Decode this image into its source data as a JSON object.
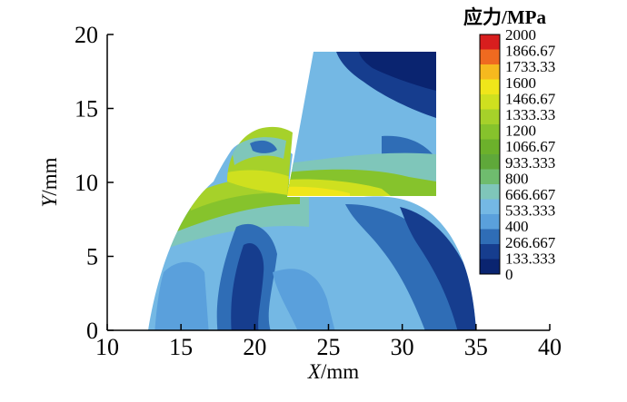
{
  "chart_data": {
    "type": "heatmap",
    "title": "",
    "xlabel_var": "X",
    "xlabel_unit": "/mm",
    "ylabel_var": "Y",
    "ylabel_unit": "/mm",
    "xlim": [
      10,
      40
    ],
    "ylim": [
      0,
      20
    ],
    "x_ticks": [
      "10",
      "15",
      "20",
      "25",
      "30",
      "35",
      "40"
    ],
    "y_ticks": [
      "0",
      "5",
      "10",
      "15",
      "20"
    ],
    "colorbar": {
      "title": "应力/MPa",
      "levels": [
        "2000",
        "1866.67",
        "1733.33",
        "1600",
        "1466.67",
        "1333.33",
        "1200",
        "1066.67",
        "933.333",
        "800",
        "666.667",
        "533.333",
        "400",
        "266.667",
        "133.333",
        "0"
      ],
      "colors": [
        "#d81e1e",
        "#ef6a20",
        "#f6b91e",
        "#f0e61a",
        "#cfe01f",
        "#a6d12a",
        "#86c32c",
        "#6cb12b",
        "#5fa83a",
        "#6fbc6e",
        "#7fc6ba",
        "#74b8e4",
        "#5aa0dc",
        "#2f6db6",
        "#163d8e",
        "#0a2470"
      ]
    },
    "regions": {
      "workpiece": {
        "x_range": [
          13,
          35
        ],
        "y_range": [
          0,
          9.5
        ],
        "dominant_stress_MPa": "133-400"
      },
      "chip_segment": {
        "x_range": [
          18.5,
          22
        ],
        "y_range": [
          9,
          13.5
        ],
        "dominant_stress_MPa": "1200-1466"
      },
      "tool": {
        "x_range": [
          22,
          32
        ],
        "y_range": [
          9,
          19
        ],
        "dominant_stress_MPa": "133-933"
      },
      "contact_band": {
        "x_range": [
          17,
          32
        ],
        "y_range": [
          8.5,
          11
        ],
        "dominant_stress_MPa": "1066-1600"
      }
    }
  }
}
